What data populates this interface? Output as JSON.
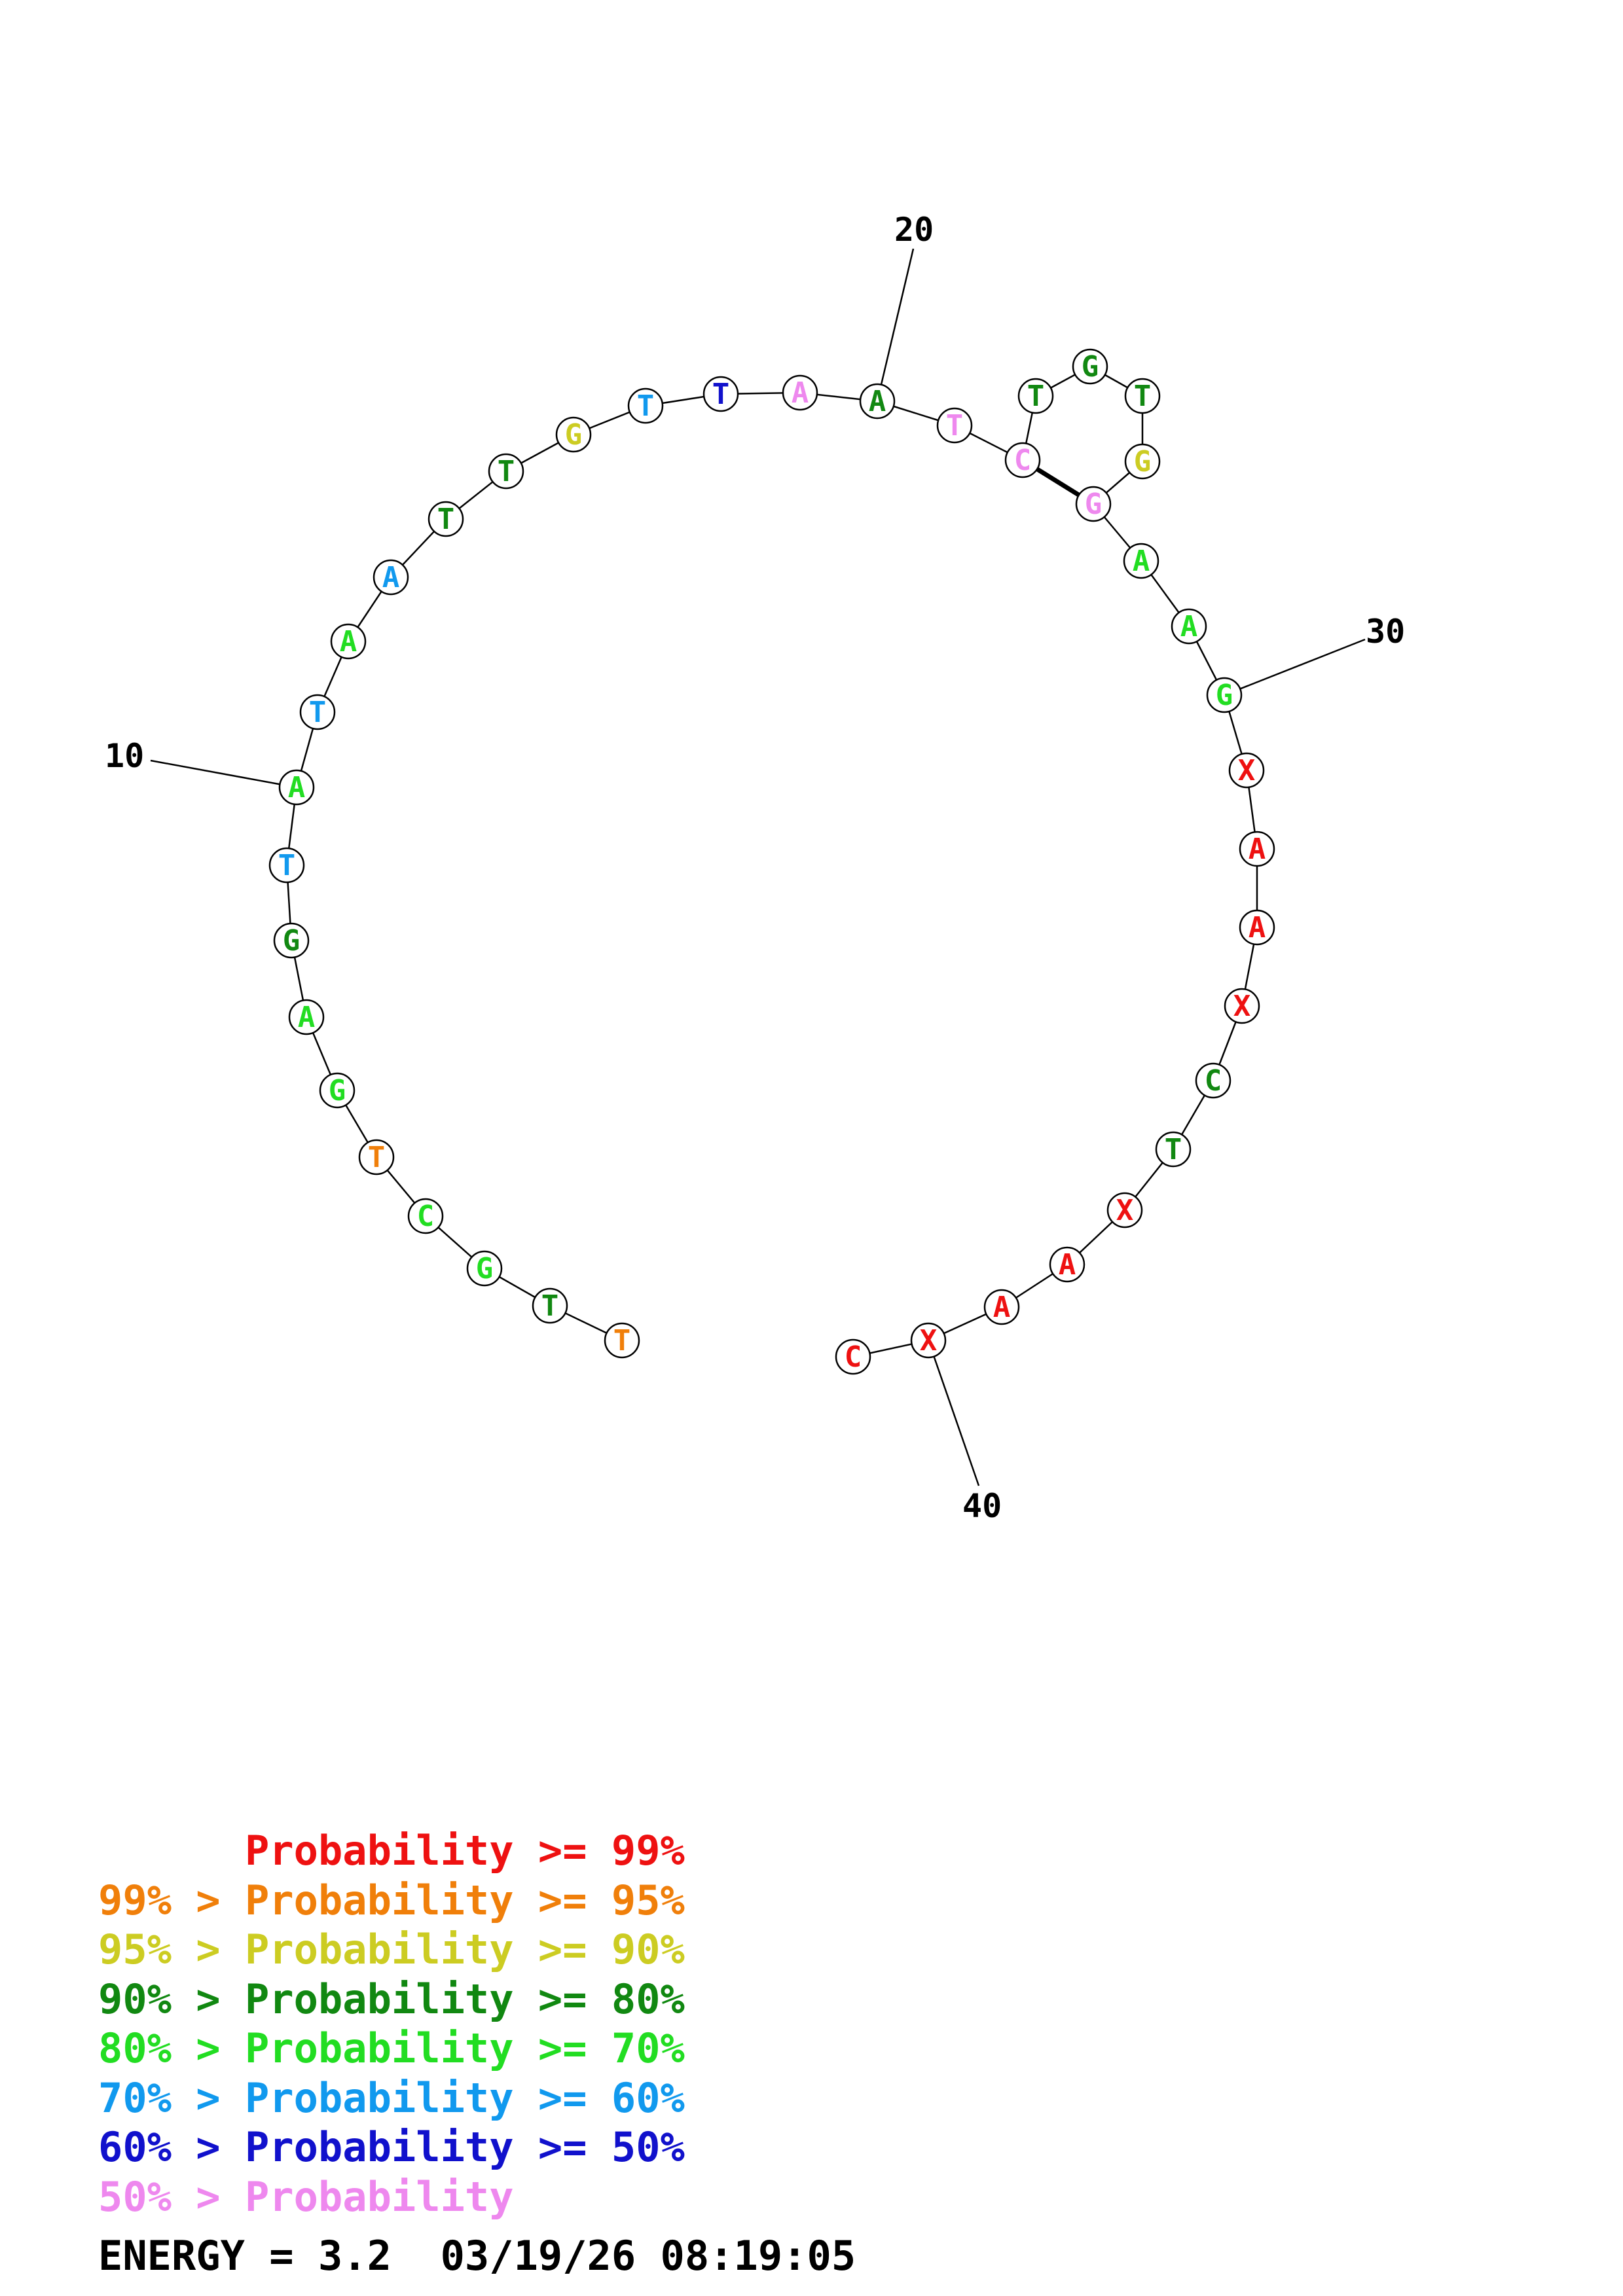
{
  "colors": {
    "red": "#ee1111",
    "orange": "#f07f0a",
    "yellow": "#cccc22",
    "darkgreen": "#118811",
    "green": "#22dd22",
    "cyan": "#1199ee",
    "blue": "#1111cc",
    "pink": "#ee88ee"
  },
  "nucleotides": [
    {
      "base": "T",
      "color": "orange"
    },
    {
      "base": "T",
      "color": "darkgreen"
    },
    {
      "base": "G",
      "color": "green"
    },
    {
      "base": "C",
      "color": "green"
    },
    {
      "base": "T",
      "color": "orange"
    },
    {
      "base": "G",
      "color": "green"
    },
    {
      "base": "A",
      "color": "green"
    },
    {
      "base": "G",
      "color": "darkgreen"
    },
    {
      "base": "T",
      "color": "cyan"
    },
    {
      "base": "A",
      "color": "green"
    },
    {
      "base": "T",
      "color": "cyan"
    },
    {
      "base": "A",
      "color": "green"
    },
    {
      "base": "A",
      "color": "cyan"
    },
    {
      "base": "T",
      "color": "darkgreen"
    },
    {
      "base": "T",
      "color": "darkgreen"
    },
    {
      "base": "G",
      "color": "yellow"
    },
    {
      "base": "T",
      "color": "cyan"
    },
    {
      "base": "T",
      "color": "blue"
    },
    {
      "base": "A",
      "color": "pink"
    },
    {
      "base": "A",
      "color": "darkgreen"
    },
    {
      "base": "T",
      "color": "pink"
    },
    {
      "base": "C",
      "color": "pink"
    },
    {
      "base": "T",
      "color": "darkgreen"
    },
    {
      "base": "G",
      "color": "darkgreen"
    },
    {
      "base": "T",
      "color": "darkgreen"
    },
    {
      "base": "G",
      "color": "yellow"
    },
    {
      "base": "G",
      "color": "pink"
    },
    {
      "base": "A",
      "color": "green"
    },
    {
      "base": "A",
      "color": "green"
    },
    {
      "base": "G",
      "color": "green"
    },
    {
      "base": "X",
      "color": "red"
    },
    {
      "base": "A",
      "color": "red"
    },
    {
      "base": "A",
      "color": "red"
    },
    {
      "base": "X",
      "color": "red"
    },
    {
      "base": "C",
      "color": "darkgreen"
    },
    {
      "base": "T",
      "color": "darkgreen"
    },
    {
      "base": "X",
      "color": "red"
    },
    {
      "base": "A",
      "color": "red"
    },
    {
      "base": "A",
      "color": "red"
    },
    {
      "base": "X",
      "color": "red"
    },
    {
      "base": "C",
      "color": "red"
    }
  ],
  "base_pairs": [
    [
      22,
      27
    ]
  ],
  "position_labels": [
    {
      "index": 10,
      "text": "10"
    },
    {
      "index": 20,
      "text": "20"
    },
    {
      "index": 30,
      "text": "30"
    },
    {
      "index": 40,
      "text": "40"
    }
  ],
  "legend": [
    {
      "prefix": "",
      "middle": "Probability",
      "suffix": ">= 99%",
      "color": "red"
    },
    {
      "prefix": "99% > ",
      "middle": "Probability",
      "suffix": ">= 95%",
      "color": "orange"
    },
    {
      "prefix": "95% > ",
      "middle": "Probability",
      "suffix": ">= 90%",
      "color": "yellow"
    },
    {
      "prefix": "90% > ",
      "middle": "Probability",
      "suffix": ">= 80%",
      "color": "darkgreen"
    },
    {
      "prefix": "80% > ",
      "middle": "Probability",
      "suffix": ">= 70%",
      "color": "green"
    },
    {
      "prefix": "70% > ",
      "middle": "Probability",
      "suffix": ">= 60%",
      "color": "cyan"
    },
    {
      "prefix": "60% > ",
      "middle": "Probability",
      "suffix": ">= 50%",
      "color": "blue"
    },
    {
      "prefix": "50% > ",
      "middle": "Probability",
      "suffix": "",
      "color": "pink"
    }
  ],
  "energy": {
    "label": "ENERGY = 3.2",
    "timestamp": "03/19/26 08:19:05"
  }
}
